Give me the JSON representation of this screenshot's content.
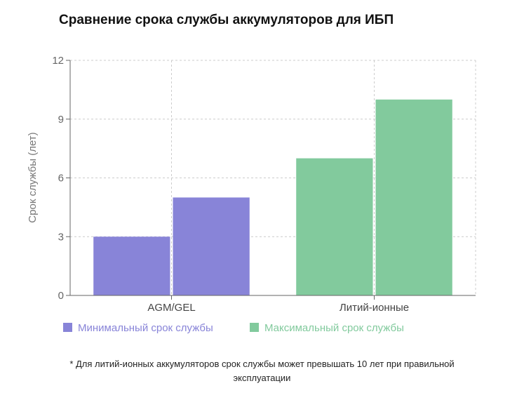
{
  "chart_data": {
    "type": "bar",
    "title": "Сравнение срока службы аккумуляторов для ИБП",
    "ylabel": "Срок службы (лет)",
    "xlabel": "",
    "ylim": [
      0,
      12
    ],
    "yticks": [
      0,
      3,
      6,
      9,
      12
    ],
    "categories": [
      "AGM/GEL",
      "Литий-ионные"
    ],
    "series": [
      {
        "name": "Минимальный срок службы",
        "values": [
          3,
          7
        ]
      },
      {
        "name": "Максимальный срок службы",
        "values": [
          5,
          10
        ]
      }
    ],
    "bar_colors": [
      [
        "#8884d8",
        "#8884d8"
      ],
      [
        "#82ca9d",
        "#82ca9d"
      ]
    ],
    "legend_colors": [
      "#8884d8",
      "#82ca9d"
    ],
    "grid": true,
    "legend_position": "bottom"
  },
  "footnote": {
    "line1": "* Для литий-ионных аккумуляторов срок службы может превышать 10 лет при правильной",
    "line2": "эксплуатации"
  }
}
